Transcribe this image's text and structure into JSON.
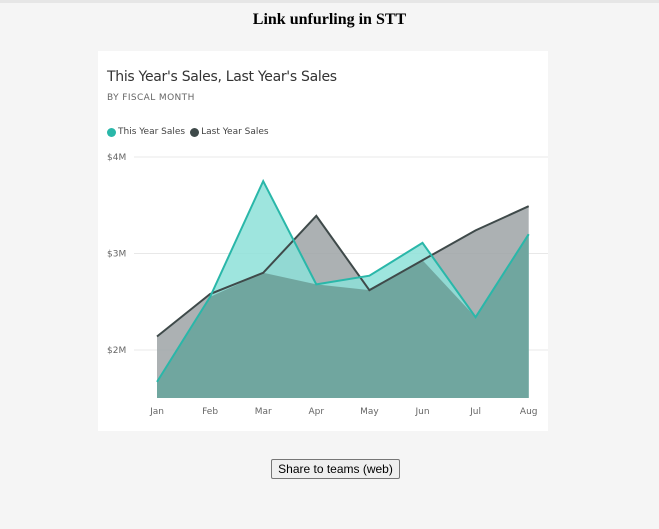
{
  "page": {
    "title": "Link unfurling in STT"
  },
  "share_button": {
    "label": "Share to teams (web)"
  },
  "chart_data": {
    "type": "area",
    "title": "This Year's Sales, Last Year's Sales",
    "subtitle": "BY FISCAL MONTH",
    "categories": [
      "Jan",
      "Feb",
      "Mar",
      "Apr",
      "May",
      "Jun",
      "Jul",
      "Aug"
    ],
    "yticks": [
      "$4M",
      "$3M",
      "$2M"
    ],
    "ytick_values": [
      4.0,
      3.0,
      2.0
    ],
    "ylim": [
      1.5,
      4.0
    ],
    "grid": true,
    "legend_position": "top-left",
    "series": [
      {
        "name": "This Year Sales",
        "color": "#2ab7a9",
        "fill": "#8de0d8",
        "values": [
          1.67,
          2.55,
          3.75,
          2.68,
          2.77,
          3.11,
          2.34,
          3.2
        ]
      },
      {
        "name": "Last Year Sales",
        "color": "#3f4a4a",
        "fill": "#9ea3a6",
        "values": [
          2.14,
          2.58,
          2.8,
          3.39,
          2.62,
          2.93,
          3.24,
          3.49
        ]
      }
    ],
    "overlap_fill": "#6fa39c"
  }
}
